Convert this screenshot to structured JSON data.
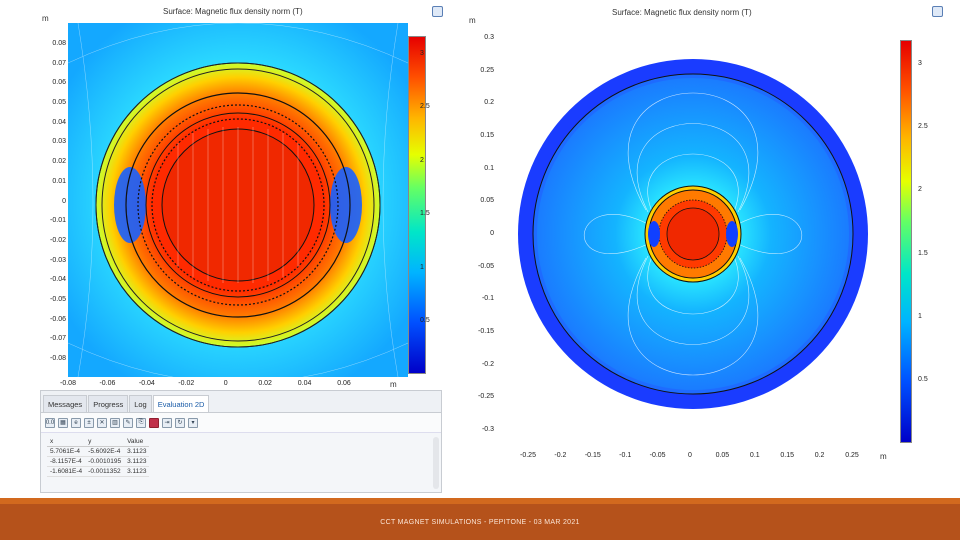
{
  "left_plot": {
    "title": "Surface: Magnetic flux density norm (T)",
    "unit": "m",
    "y_ticks": [
      "0.08",
      "0.07",
      "0.06",
      "0.05",
      "0.04",
      "0.03",
      "0.02",
      "0.01",
      "0",
      "-0.01",
      "-0.02",
      "-0.03",
      "-0.04",
      "-0.05",
      "-0.06",
      "-0.07",
      "-0.08"
    ],
    "x_ticks": [
      "-0.08",
      "-0.06",
      "-0.04",
      "-0.02",
      "0",
      "0.02",
      "0.04",
      "0.06"
    ],
    "x_unit": "m",
    "colorbar_ticks": [
      "3",
      "2.5",
      "2",
      "1.5",
      "1",
      "0.5"
    ]
  },
  "right_plot": {
    "title": "Surface: Magnetic flux density norm (T)",
    "unit": "m",
    "y_ticks": [
      "0.3",
      "0.25",
      "0.2",
      "0.15",
      "0.1",
      "0.05",
      "0",
      "-0.05",
      "-0.1",
      "-0.15",
      "-0.2",
      "-0.25",
      "-0.3"
    ],
    "x_ticks": [
      "-0.25",
      "-0.2",
      "-0.15",
      "-0.1",
      "-0.05",
      "0",
      "0.05",
      "0.1",
      "0.15",
      "0.2",
      "0.25"
    ],
    "x_unit": "m",
    "colorbar_ticks": [
      "3",
      "2.5",
      "2",
      "1.5",
      "1",
      "0.5"
    ]
  },
  "log_window": {
    "tabs": [
      "Messages",
      "Progress",
      "Log",
      "Evaluation 2D"
    ],
    "columns": [
      "x",
      "y",
      "Value"
    ],
    "rows": [
      [
        "5.7061E-4",
        "-5.6092E-4",
        "3.1123"
      ],
      [
        "-8.1157E-4",
        "-0.0010195",
        "3.1123"
      ],
      [
        "-1.6081E-4",
        "-0.0011352",
        "3.1123"
      ]
    ]
  },
  "footer": {
    "text": "CCT MAGNET SIMULATIONS - PEPITONE - 03 MAR 2021"
  },
  "colors": {
    "footer_band": "#b5521b",
    "footer_line": "#d2691e"
  }
}
